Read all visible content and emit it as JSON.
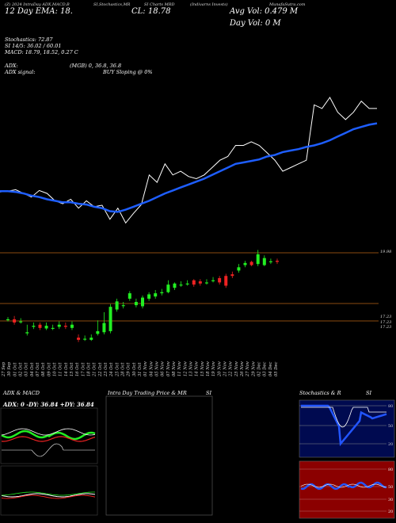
{
  "header": {
    "line1_left": "(Z) 2024 IntraDay ADX,MACD,B",
    "line1_center": "SI,Stochastics,MR",
    "line1_mid": "SI Charts MRD",
    "line1_right": "(Indivarns Invests)",
    "line1_far": "MunafaSutra.com",
    "line2_left": "12 Day EMA: 18.",
    "line2_mid": "CL: 18.78",
    "line2_right": "Avg Vol: 0.479 M",
    "line3_right": "Day Vol: 0   M"
  },
  "indicators": {
    "stochastics": "Stochastics: 72.87",
    "si": "SI 14/5: 36.02 / 60.01",
    "macd": "MACD: 18.79, 18.52, 0.27 C",
    "adx": "ADX:",
    "adx_vals": "(MGB) 0, 36.8, 36.8",
    "adx_signal": "ADX signal:",
    "buy_signal": "BUY Sloping @ 0%"
  },
  "price_labels": {
    "upper": "19.98",
    "lower1": "17.23",
    "lower2": "17.23",
    "lower3": "17.23"
  },
  "colors": {
    "bg": "#000000",
    "ema": "#1e5eff",
    "price_line": "#ffffff",
    "up": "#22ee22",
    "down": "#ee2222",
    "hline": "#8a4a10",
    "stoch_bg": "#000a50",
    "rsi_bg": "#8b0000"
  },
  "chart_data": {
    "type": "line",
    "x": [
      "27 Sep",
      "30 Sep",
      "01 Oct",
      "02 Oct",
      "03 Oct",
      "04 Oct",
      "07 Oct",
      "08 Oct",
      "09 Oct",
      "10 Oct",
      "11 Oct",
      "14 Oct",
      "15 Oct",
      "16 Oct",
      "17 Oct",
      "18 Oct",
      "21 Oct",
      "22 Oct",
      "23 Oct",
      "24 Oct",
      "25 Oct",
      "28 Oct",
      "29 Oct",
      "30 Oct",
      "31 Oct",
      "01 Nov",
      "04 Nov",
      "05 Nov",
      "06 Nov",
      "07 Nov",
      "08 Nov",
      "11 Nov",
      "12 Nov",
      "13 Nov",
      "14 Nov",
      "15 Nov",
      "18 Nov",
      "19 Nov",
      "20 Nov",
      "21 Nov",
      "22 Nov",
      "25 Nov",
      "26 Nov",
      "27 Nov",
      "29 Nov",
      "02 Dec",
      "03 Dec",
      "04 Dec",
      "05 Dec"
    ],
    "series": [
      {
        "values": [
          17.83,
          17.83,
          17.82,
          17.8,
          17.77,
          17.75,
          17.72,
          17.7,
          17.68,
          17.68,
          17.66,
          17.65,
          17.62,
          17.6,
          17.56,
          17.55,
          17.58,
          17.62,
          17.66,
          17.7,
          17.75,
          17.8,
          17.84,
          17.88,
          17.92,
          17.96,
          18.0,
          18.05,
          18.1,
          18.15,
          18.2,
          18.22,
          18.24,
          18.26,
          18.3,
          18.32,
          18.36,
          18.38,
          18.4,
          18.43,
          18.45,
          18.48,
          18.52,
          18.57,
          18.62,
          18.67,
          18.7,
          18.73,
          18.75
        ]
      },
      {
        "values": [
          17.82,
          17.83,
          17.85,
          17.8,
          17.75,
          17.84,
          17.8,
          17.7,
          17.66,
          17.72,
          17.6,
          17.7,
          17.62,
          17.64,
          17.45,
          17.6,
          17.4,
          17.53,
          17.65,
          18.05,
          17.95,
          18.2,
          18.05,
          18.1,
          18.03,
          18.0,
          18.05,
          18.15,
          18.25,
          18.3,
          18.45,
          18.45,
          18.5,
          18.45,
          18.35,
          18.25,
          18.1,
          18.15,
          18.2,
          18.25,
          19.0,
          18.95,
          19.1,
          18.9,
          18.8,
          18.9,
          19.05,
          18.95,
          18.95
        ]
      }
    ],
    "candles": {
      "open": [
        17.72,
        17.72,
        17.68,
        17.46,
        17.58,
        17.62,
        17.55,
        17.56,
        17.58,
        17.6,
        17.56,
        17.38,
        17.35,
        17.34,
        17.45,
        17.48,
        17.5,
        17.9,
        17.98,
        18.1,
        17.98,
        17.96,
        18.1,
        18.14,
        18.2,
        18.22,
        18.3,
        18.36,
        18.38,
        18.44,
        18.42,
        18.4,
        18.44,
        18.48,
        18.52,
        18.55,
        18.62,
        18.72,
        18.78,
        18.74,
        18.72,
        18.79,
        18.8
      ],
      "close": [
        17.72,
        17.66,
        17.68,
        17.48,
        17.6,
        17.56,
        17.6,
        17.56,
        17.62,
        17.58,
        17.62,
        17.34,
        17.36,
        17.38,
        17.5,
        17.65,
        17.95,
        18.05,
        17.98,
        18.2,
        18.04,
        18.12,
        18.18,
        18.2,
        18.22,
        18.36,
        18.38,
        18.36,
        18.38,
        18.36,
        18.38,
        18.4,
        18.44,
        18.4,
        18.34,
        18.52,
        18.68,
        18.76,
        18.72,
        18.92,
        18.85,
        18.79,
        18.78
      ],
      "high": [
        17.76,
        17.78,
        17.74,
        17.62,
        17.66,
        17.66,
        17.66,
        17.62,
        17.68,
        17.66,
        17.68,
        17.44,
        17.42,
        17.44,
        17.7,
        17.85,
        18.0,
        18.1,
        18.04,
        18.24,
        18.1,
        18.16,
        18.22,
        18.26,
        18.28,
        18.44,
        18.4,
        18.42,
        18.44,
        18.46,
        18.46,
        18.46,
        18.5,
        18.52,
        18.56,
        18.6,
        18.74,
        18.8,
        18.8,
        19.0,
        18.9,
        18.84,
        18.84
      ],
      "low": [
        17.68,
        17.62,
        17.64,
        17.42,
        17.54,
        17.52,
        17.52,
        17.52,
        17.54,
        17.54,
        17.52,
        17.3,
        17.32,
        17.32,
        17.42,
        17.44,
        17.46,
        17.86,
        17.92,
        18.06,
        17.94,
        17.92,
        18.06,
        18.1,
        18.16,
        18.2,
        18.26,
        18.32,
        18.34,
        18.32,
        18.34,
        18.36,
        18.4,
        18.36,
        18.3,
        18.48,
        18.58,
        18.68,
        18.7,
        18.7,
        18.7,
        18.74,
        18.74
      ]
    }
  }
}
